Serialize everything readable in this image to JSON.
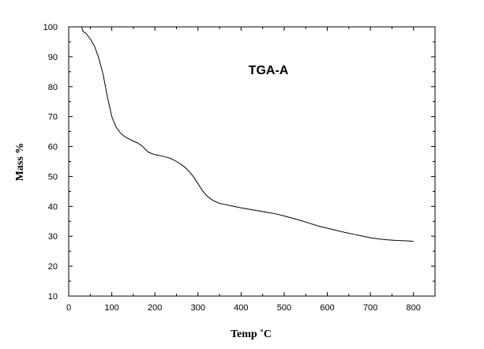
{
  "chart_data": {
    "type": "line",
    "title": "",
    "annotation": "TGA-A",
    "xlabel": "Temp ˚C",
    "ylabel": "Mass %",
    "xlim": [
      0,
      850
    ],
    "ylim": [
      10,
      100
    ],
    "xticks": [
      0,
      100,
      200,
      300,
      400,
      500,
      600,
      700,
      800
    ],
    "yticks": [
      10,
      20,
      30,
      40,
      50,
      60,
      70,
      80,
      90,
      100
    ],
    "grid": false,
    "legend": "none",
    "line_color": "#000000",
    "series": [
      {
        "x": [
          30,
          33,
          40,
          50,
          60,
          70,
          80,
          90,
          100,
          110,
          120,
          130,
          140,
          150,
          160,
          170,
          180,
          185,
          190,
          200,
          210,
          220,
          230,
          240,
          250,
          260,
          270,
          280,
          290,
          300,
          310,
          320,
          330,
          340,
          350,
          360,
          380,
          400,
          420,
          440,
          460,
          480,
          500,
          520,
          540,
          560,
          580,
          600,
          620,
          640,
          660,
          680,
          700,
          720,
          740,
          760,
          780,
          800
        ],
        "y": [
          100,
          98.5,
          97.8,
          96,
          93.5,
          89.5,
          84,
          76.5,
          70,
          66.5,
          64.5,
          63.3,
          62.5,
          61.8,
          61.2,
          60.2,
          58.8,
          58.1,
          57.8,
          57.3,
          57,
          56.7,
          56.3,
          55.8,
          55,
          54.1,
          53,
          51.6,
          49.8,
          47.6,
          45.3,
          43.6,
          42.4,
          41.6,
          41,
          40.7,
          40.1,
          39.5,
          39,
          38.5,
          38,
          37.5,
          36.8,
          36,
          35.2,
          34.3,
          33.4,
          32.7,
          32,
          31.3,
          30.7,
          30.1,
          29.5,
          29.1,
          28.8,
          28.6,
          28.5,
          28.3
        ]
      }
    ]
  }
}
